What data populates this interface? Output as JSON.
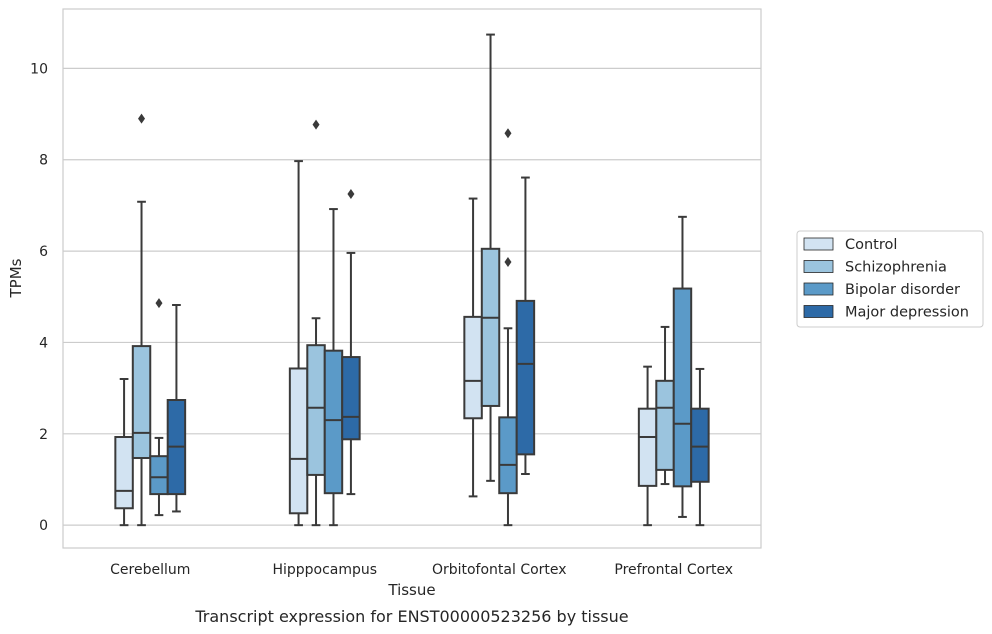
{
  "chart_data": {
    "type": "box",
    "title": "Transcript expression for ENST00000523256 by tissue",
    "xlabel": "Tissue",
    "ylabel": "TPMs",
    "ylim": [
      -0.5,
      11.3
    ],
    "yticks": [
      0,
      2,
      4,
      6,
      8,
      10
    ],
    "grid": "horizontal",
    "legend_position": "right",
    "categories": [
      "Cerebellum",
      "Hipppocampus",
      "Orbitofontal Cortex",
      "Prefrontal Cortex"
    ],
    "series": [
      {
        "name": "Control",
        "color": "#d2e3f2",
        "boxes": [
          {
            "whisker_low": 0.0,
            "q1": 0.37,
            "median": 0.75,
            "q3": 1.93,
            "whisker_high": 3.2,
            "outliers": []
          },
          {
            "whisker_low": 0.0,
            "q1": 0.26,
            "median": 1.45,
            "q3": 3.43,
            "whisker_high": 7.97,
            "outliers": []
          },
          {
            "whisker_low": 0.63,
            "q1": 2.34,
            "median": 3.16,
            "q3": 4.56,
            "whisker_high": 7.15,
            "outliers": []
          },
          {
            "whisker_low": 0.0,
            "q1": 0.86,
            "median": 1.93,
            "q3": 2.55,
            "whisker_high": 3.47,
            "outliers": []
          }
        ]
      },
      {
        "name": "Schizophrenia",
        "color": "#9bc4de",
        "boxes": [
          {
            "whisker_low": 0.0,
            "q1": 1.47,
            "median": 2.02,
            "q3": 3.92,
            "whisker_high": 7.08,
            "outliers": [
              8.9
            ]
          },
          {
            "whisker_low": 0.0,
            "q1": 1.1,
            "median": 2.57,
            "q3": 3.94,
            "whisker_high": 4.53,
            "outliers": [
              8.77
            ]
          },
          {
            "whisker_low": 0.97,
            "q1": 2.61,
            "median": 4.54,
            "q3": 6.05,
            "whisker_high": 10.74,
            "outliers": []
          },
          {
            "whisker_low": 0.9,
            "q1": 1.21,
            "median": 2.57,
            "q3": 3.16,
            "whisker_high": 4.34,
            "outliers": []
          }
        ]
      },
      {
        "name": "Bipolar disorder",
        "color": "#5b9ac8",
        "boxes": [
          {
            "whisker_low": 0.22,
            "q1": 0.68,
            "median": 1.05,
            "q3": 1.51,
            "whisker_high": 1.91,
            "outliers": [
              4.86
            ]
          },
          {
            "whisker_low": 0.0,
            "q1": 0.7,
            "median": 2.3,
            "q3": 3.82,
            "whisker_high": 6.92,
            "outliers": []
          },
          {
            "whisker_low": 0.0,
            "q1": 0.7,
            "median": 1.32,
            "q3": 2.36,
            "whisker_high": 4.31,
            "outliers": [
              5.76,
              8.58
            ]
          },
          {
            "whisker_low": 0.18,
            "q1": 0.85,
            "median": 2.22,
            "q3": 5.18,
            "whisker_high": 6.75,
            "outliers": []
          }
        ]
      },
      {
        "name": "Major depression",
        "color": "#2d6aa7",
        "boxes": [
          {
            "whisker_low": 0.3,
            "q1": 0.68,
            "median": 1.72,
            "q3": 2.74,
            "whisker_high": 4.82,
            "outliers": []
          },
          {
            "whisker_low": 0.68,
            "q1": 1.88,
            "median": 2.37,
            "q3": 3.68,
            "whisker_high": 5.96,
            "outliers": [
              7.25
            ]
          },
          {
            "whisker_low": 1.12,
            "q1": 1.55,
            "median": 3.53,
            "q3": 4.91,
            "whisker_high": 7.61,
            "outliers": []
          },
          {
            "whisker_low": 0.0,
            "q1": 0.95,
            "median": 1.72,
            "q3": 2.55,
            "whisker_high": 3.42,
            "outliers": []
          }
        ]
      }
    ]
  }
}
